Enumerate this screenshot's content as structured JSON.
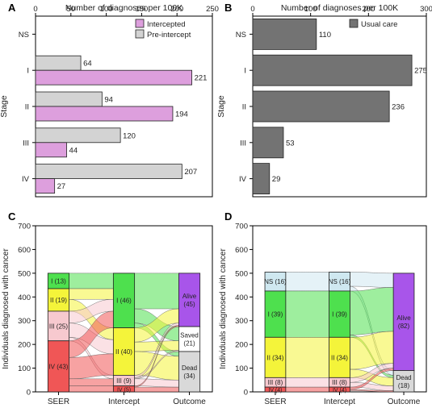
{
  "chart_data": [
    {
      "panel": "A",
      "type": "bar",
      "orientation": "horizontal",
      "xlabel": "Number of diagnoses per 100K",
      "ylabel": "Stage",
      "categories": [
        "NS",
        "I",
        "II",
        "III",
        "IV"
      ],
      "xlim": [
        0,
        250
      ],
      "xticks": [
        0,
        50,
        100,
        150,
        200,
        250
      ],
      "series": [
        {
          "name": "Pre-intercept",
          "color": "#d3d3d3",
          "values": [
            null,
            64,
            94,
            120,
            207
          ]
        },
        {
          "name": "Intercepted",
          "color": "#dd9fdd",
          "values": [
            null,
            221,
            194,
            44,
            27
          ]
        }
      ],
      "legend": "top-right",
      "grid": false
    },
    {
      "panel": "B",
      "type": "bar",
      "orientation": "horizontal",
      "xlabel": "Number of diagnoses per 100K",
      "ylabel": "Stage",
      "categories": [
        "NS",
        "I",
        "II",
        "III",
        "IV"
      ],
      "xlim": [
        0,
        300
      ],
      "xticks": [
        0,
        100,
        200,
        300
      ],
      "series": [
        {
          "name": "Usual care",
          "color": "#737373",
          "values": [
            110,
            275,
            236,
            53,
            29
          ]
        }
      ],
      "legend": "top-right",
      "grid": false
    },
    {
      "panel": "C",
      "type": "sankey",
      "ylabel": "Individuals diagnosed with cancer",
      "ylim": [
        0,
        700
      ],
      "yticks": [
        0,
        100,
        200,
        300,
        400,
        500,
        600,
        700
      ],
      "axes": [
        "SEER",
        "Intercept",
        "Outcome"
      ],
      "columns": [
        [
          {
            "label": "I (13)",
            "value": 13,
            "color": "#4ee04e"
          },
          {
            "label": "II (19)",
            "value": 19,
            "color": "#f4f43a"
          },
          {
            "label": "III (25)",
            "value": 25,
            "color": "#f7c9cf"
          },
          {
            "label": "IV (43)",
            "value": 43,
            "color": "#f05656"
          }
        ],
        [
          {
            "label": "I (46)",
            "value": 46,
            "color": "#4ee04e"
          },
          {
            "label": "II (40)",
            "value": 40,
            "color": "#f4f43a"
          },
          {
            "label": "III (9)",
            "value": 9,
            "color": "#f7c9cf"
          },
          {
            "label": "IV (5)",
            "value": 5,
            "color": "#f05656"
          }
        ],
        [
          {
            "label": "Alive (45)",
            "value": 45,
            "color": "#a855ea"
          },
          {
            "label": "Saved (21)",
            "value": 21,
            "color": "#ffffff"
          },
          {
            "label": "Dead (34)",
            "value": 34,
            "color": "#d9d9d9"
          }
        ]
      ]
    },
    {
      "panel": "D",
      "type": "sankey",
      "ylabel": "Individuals diagnosed with cancer",
      "ylim": [
        0,
        700
      ],
      "yticks": [
        0,
        100,
        200,
        300,
        400,
        500,
        600,
        700
      ],
      "axes": [
        "SEER",
        "Intercept",
        "Outcome"
      ],
      "columns": [
        [
          {
            "label": "NS (16)",
            "value": 16,
            "color": "#cfe8f0"
          },
          {
            "label": "I (39)",
            "value": 39,
            "color": "#4ee04e"
          },
          {
            "label": "II (34)",
            "value": 34,
            "color": "#f4f43a"
          },
          {
            "label": "III (8)",
            "value": 8,
            "color": "#f7c9cf"
          },
          {
            "label": "IV (4)",
            "value": 4,
            "color": "#f05656"
          }
        ],
        [
          {
            "label": "NS (16)",
            "value": 16,
            "color": "#cfe8f0"
          },
          {
            "label": "I (39)",
            "value": 39,
            "color": "#4ee04e"
          },
          {
            "label": "II (34)",
            "value": 34,
            "color": "#f4f43a"
          },
          {
            "label": "III (8)",
            "value": 8,
            "color": "#f7c9cf"
          },
          {
            "label": "IV (4)",
            "value": 4,
            "color": "#f05656"
          }
        ],
        [
          {
            "label": "Alive (82)",
            "value": 82,
            "color": "#a855ea"
          },
          {
            "label": "Dead (18)",
            "value": 18,
            "color": "#d9d9d9"
          }
        ]
      ]
    }
  ]
}
